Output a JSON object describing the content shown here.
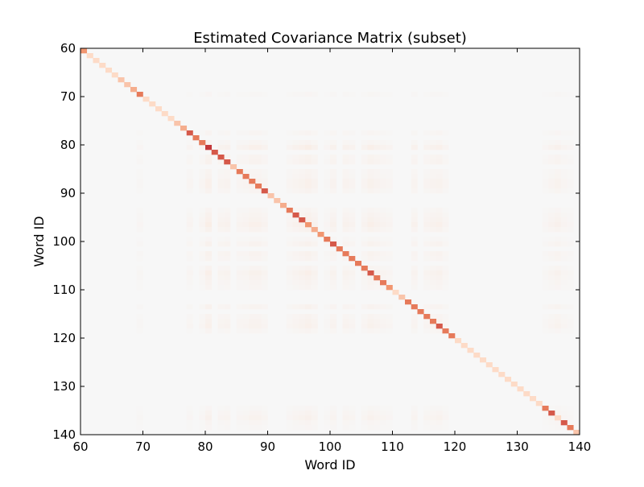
{
  "chart_data": {
    "type": "heatmap",
    "title": "Estimated Covariance Matrix (subset)",
    "xlabel": "Word ID",
    "ylabel": "Word ID",
    "xlim": [
      60,
      140
    ],
    "ylim": [
      140,
      60
    ],
    "x_ticks": [
      60,
      70,
      80,
      90,
      100,
      110,
      120,
      130,
      140
    ],
    "y_ticks": [
      60,
      70,
      80,
      90,
      100,
      110,
      120,
      130,
      140
    ],
    "x_tick_labels": [
      "60",
      "70",
      "80",
      "90",
      "100",
      "110",
      "120",
      "130",
      "140"
    ],
    "y_tick_labels": [
      "60",
      "70",
      "80",
      "90",
      "100",
      "110",
      "120",
      "130",
      "140"
    ],
    "grid": false,
    "colormap": "Reds",
    "colors": {
      "background": "#f7f7f7",
      "low": "#fddbc7",
      "mid": "#ef8a62",
      "high": "#b2182b"
    },
    "diagonal": {
      "ids": [
        60,
        61,
        62,
        63,
        64,
        65,
        66,
        67,
        68,
        69,
        70,
        71,
        72,
        73,
        74,
        75,
        76,
        77,
        78,
        79,
        80,
        81,
        82,
        83,
        84,
        85,
        86,
        87,
        88,
        89,
        90,
        91,
        92,
        93,
        94,
        95,
        96,
        97,
        98,
        99,
        100,
        101,
        102,
        103,
        104,
        105,
        106,
        107,
        108,
        109,
        110,
        111,
        112,
        113,
        114,
        115,
        116,
        117,
        118,
        119,
        120,
        121,
        122,
        123,
        124,
        125,
        126,
        127,
        128,
        129,
        130,
        131,
        132,
        133,
        134,
        135,
        136,
        137,
        138,
        139
      ],
      "values": [
        0.6,
        0.3,
        0.3,
        0.3,
        0.3,
        0.3,
        0.4,
        0.4,
        0.5,
        0.7,
        0.3,
        0.3,
        0.3,
        0.3,
        0.3,
        0.4,
        0.5,
        0.8,
        0.7,
        0.7,
        0.9,
        0.8,
        0.8,
        0.8,
        0.4,
        0.7,
        0.7,
        0.7,
        0.7,
        0.8,
        0.4,
        0.4,
        0.5,
        0.7,
        0.8,
        0.8,
        0.6,
        0.5,
        0.6,
        0.7,
        0.8,
        0.7,
        0.7,
        0.7,
        0.7,
        0.7,
        0.8,
        0.7,
        0.7,
        0.6,
        0.3,
        0.4,
        0.7,
        0.7,
        0.7,
        0.7,
        0.7,
        0.8,
        0.7,
        0.7,
        0.3,
        0.3,
        0.3,
        0.3,
        0.3,
        0.3,
        0.3,
        0.3,
        0.3,
        0.3,
        0.3,
        0.3,
        0.3,
        0.3,
        0.7,
        0.8,
        0.3,
        0.8,
        0.7,
        0.4
      ]
    },
    "off_diagonal": {
      "active_ids": [
        69,
        77,
        79,
        80,
        82,
        83,
        85,
        86,
        87,
        88,
        89,
        93,
        94,
        95,
        96,
        97,
        99,
        100,
        102,
        103,
        105,
        106,
        107,
        108,
        109,
        113,
        115,
        116,
        117,
        118,
        134,
        135,
        136,
        137,
        138
      ],
      "weights": [
        0.25,
        0.35,
        0.35,
        0.9,
        0.5,
        0.6,
        0.4,
        0.45,
        0.7,
        0.7,
        0.45,
        0.35,
        0.55,
        0.7,
        0.9,
        0.6,
        0.25,
        0.6,
        0.6,
        0.45,
        0.45,
        0.8,
        0.6,
        0.45,
        0.35,
        0.55,
        0.45,
        0.6,
        0.7,
        0.35,
        0.25,
        0.45,
        0.65,
        0.35,
        0.25
      ],
      "max_value": 0.12
    }
  }
}
